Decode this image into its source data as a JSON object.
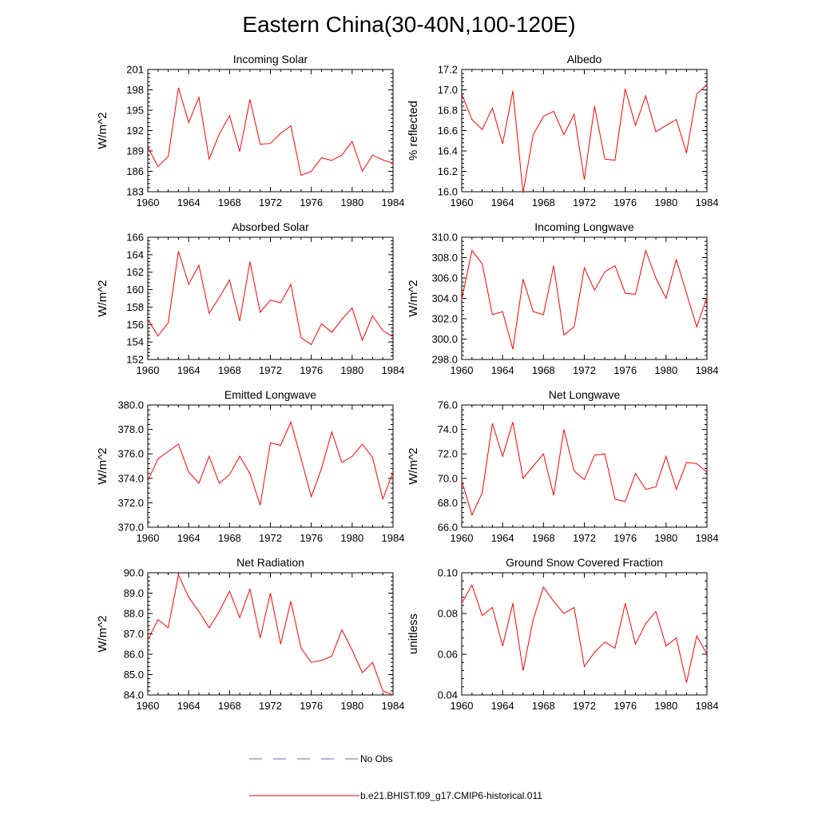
{
  "title": "Eastern China(30-40N,100-120E)",
  "legend": {
    "no_obs": "No Obs",
    "model": "b.e21.BHIST.f09_g17.CMIP6-historical.011",
    "no_obs_color": "#6b6bb8",
    "model_color": "#ff0000"
  },
  "chart_data": [
    {
      "type": "line",
      "title": "Incoming Solar",
      "ylabel": "W/m^2",
      "xlim": [
        1960,
        1984
      ],
      "xticks": [
        1960,
        1964,
        1968,
        1972,
        1976,
        1980,
        1984
      ],
      "ylim": [
        183,
        201
      ],
      "yticks": [
        "183",
        "186",
        "189",
        "192",
        "195",
        "198",
        "201"
      ],
      "x": [
        1960,
        1961,
        1962,
        1963,
        1964,
        1965,
        1966,
        1967,
        1968,
        1969,
        1970,
        1971,
        1972,
        1973,
        1974,
        1975,
        1976,
        1977,
        1978,
        1979,
        1980,
        1981,
        1982,
        1983,
        1984
      ],
      "series": [
        {
          "color": "#ff0000",
          "values": [
            189.6,
            186.7,
            188.2,
            198.3,
            193.2,
            196.9,
            187.8,
            191.5,
            194.2,
            188.9,
            196.6,
            190.0,
            190.1,
            191.6,
            192.7,
            185.4,
            186.0,
            188.0,
            187.6,
            188.4,
            190.4,
            186.0,
            188.4,
            187.7,
            187.2
          ]
        }
      ]
    },
    {
      "type": "line",
      "title": "Albedo",
      "ylabel": "% reflected",
      "xlim": [
        1960,
        1984
      ],
      "xticks": [
        1960,
        1964,
        1968,
        1972,
        1976,
        1980,
        1984
      ],
      "ylim": [
        16.0,
        17.2
      ],
      "yticks": [
        "16.0",
        "16.2",
        "16.4",
        "16.6",
        "16.8",
        "17.0",
        "17.2"
      ],
      "x": [
        1960,
        1961,
        1962,
        1963,
        1964,
        1965,
        1966,
        1967,
        1968,
        1969,
        1970,
        1971,
        1972,
        1973,
        1974,
        1975,
        1976,
        1977,
        1978,
        1979,
        1980,
        1981,
        1982,
        1983,
        1984
      ],
      "series": [
        {
          "color": "#ff0000",
          "values": [
            16.96,
            16.71,
            16.61,
            16.82,
            16.47,
            16.99,
            15.99,
            16.56,
            16.74,
            16.79,
            16.56,
            16.76,
            16.12,
            16.84,
            16.32,
            16.31,
            17.01,
            16.65,
            16.94,
            16.59,
            16.65,
            16.71,
            16.38,
            16.96,
            17.05
          ]
        }
      ]
    },
    {
      "type": "line",
      "title": "Absorbed Solar",
      "ylabel": "W/m^2",
      "xlim": [
        1960,
        1984
      ],
      "xticks": [
        1960,
        1964,
        1968,
        1972,
        1976,
        1980,
        1984
      ],
      "ylim": [
        152,
        166
      ],
      "yticks": [
        "152",
        "154",
        "156",
        "158",
        "160",
        "162",
        "164",
        "166"
      ],
      "x": [
        1960,
        1961,
        1962,
        1963,
        1964,
        1965,
        1966,
        1967,
        1968,
        1969,
        1970,
        1971,
        1972,
        1973,
        1974,
        1975,
        1976,
        1977,
        1978,
        1979,
        1980,
        1981,
        1982,
        1983,
        1984
      ],
      "series": [
        {
          "color": "#ff0000",
          "values": [
            156.6,
            154.7,
            156.2,
            164.4,
            160.6,
            162.8,
            157.3,
            159.1,
            161.1,
            156.4,
            163.2,
            157.4,
            158.8,
            158.5,
            160.6,
            154.5,
            153.7,
            156.1,
            155.1,
            156.6,
            157.9,
            154.2,
            157.0,
            155.3,
            154.6
          ]
        }
      ]
    },
    {
      "type": "line",
      "title": "Incoming Longwave",
      "ylabel": "W/m^2",
      "xlim": [
        1960,
        1984
      ],
      "xticks": [
        1960,
        1964,
        1968,
        1972,
        1976,
        1980,
        1984
      ],
      "ylim": [
        298.0,
        310.0
      ],
      "yticks": [
        "298.0",
        "300.0",
        "302.0",
        "304.0",
        "306.0",
        "308.0",
        "310.0"
      ],
      "x": [
        1960,
        1961,
        1962,
        1963,
        1964,
        1965,
        1966,
        1967,
        1968,
        1969,
        1970,
        1971,
        1972,
        1973,
        1974,
        1975,
        1976,
        1977,
        1978,
        1979,
        1980,
        1981,
        1982,
        1983,
        1984
      ],
      "series": [
        {
          "color": "#ff0000",
          "values": [
            303.9,
            308.7,
            307.4,
            302.4,
            302.7,
            299.0,
            305.9,
            302.7,
            302.4,
            307.2,
            300.4,
            301.2,
            307.0,
            304.8,
            306.6,
            307.2,
            304.5,
            304.4,
            308.7,
            306.0,
            304.0,
            307.8,
            304.5,
            301.2,
            304.1
          ]
        }
      ]
    },
    {
      "type": "line",
      "title": "Emitted Longwave",
      "ylabel": "W/m^2",
      "xlim": [
        1960,
        1984
      ],
      "xticks": [
        1960,
        1964,
        1968,
        1972,
        1976,
        1980,
        1984
      ],
      "ylim": [
        370.0,
        380.0
      ],
      "yticks": [
        "370.0",
        "372.0",
        "374.0",
        "376.0",
        "378.0",
        "380.0"
      ],
      "x": [
        1960,
        1961,
        1962,
        1963,
        1964,
        1965,
        1966,
        1967,
        1968,
        1969,
        1970,
        1971,
        1972,
        1973,
        1974,
        1975,
        1976,
        1977,
        1978,
        1979,
        1980,
        1981,
        1982,
        1983,
        1984
      ],
      "series": [
        {
          "color": "#ff0000",
          "values": [
            373.8,
            375.6,
            376.2,
            376.8,
            374.5,
            373.6,
            375.8,
            373.6,
            374.3,
            375.8,
            374.4,
            371.8,
            376.9,
            376.7,
            378.6,
            375.6,
            372.5,
            374.8,
            377.8,
            375.3,
            375.8,
            376.8,
            375.7,
            372.3,
            374.5
          ]
        }
      ]
    },
    {
      "type": "line",
      "title": "Net Longwave",
      "ylabel": "W/m^2",
      "xlim": [
        1960,
        1984
      ],
      "xticks": [
        1960,
        1964,
        1968,
        1972,
        1976,
        1980,
        1984
      ],
      "ylim": [
        66.0,
        76.0
      ],
      "yticks": [
        "66.0",
        "68.0",
        "70.0",
        "72.0",
        "74.0",
        "76.0"
      ],
      "x": [
        1960,
        1961,
        1962,
        1963,
        1964,
        1965,
        1966,
        1967,
        1968,
        1969,
        1970,
        1971,
        1972,
        1973,
        1974,
        1975,
        1976,
        1977,
        1978,
        1979,
        1980,
        1981,
        1982,
        1983,
        1984
      ],
      "series": [
        {
          "color": "#ff0000",
          "values": [
            69.8,
            67.0,
            68.8,
            74.5,
            71.8,
            74.6,
            70.0,
            71.0,
            72.0,
            68.6,
            74.0,
            70.6,
            69.9,
            71.9,
            72.0,
            68.3,
            68.1,
            70.4,
            69.1,
            69.3,
            71.8,
            69.1,
            71.3,
            71.2,
            70.5
          ]
        }
      ]
    },
    {
      "type": "line",
      "title": "Net Radiation",
      "ylabel": "W/m^2",
      "xlim": [
        1960,
        1984
      ],
      "xticks": [
        1960,
        1964,
        1968,
        1972,
        1976,
        1980,
        1984
      ],
      "ylim": [
        84.0,
        90.0
      ],
      "yticks": [
        "84.0",
        "85.0",
        "86.0",
        "87.0",
        "88.0",
        "89.0",
        "90.0"
      ],
      "x": [
        1960,
        1961,
        1962,
        1963,
        1964,
        1965,
        1966,
        1967,
        1968,
        1969,
        1970,
        1971,
        1972,
        1973,
        1974,
        1975,
        1976,
        1977,
        1978,
        1979,
        1980,
        1981,
        1982,
        1983,
        1984
      ],
      "series": [
        {
          "color": "#ff0000",
          "values": [
            86.7,
            87.7,
            87.3,
            89.9,
            88.8,
            88.1,
            87.3,
            88.1,
            89.1,
            87.8,
            89.2,
            86.8,
            89.0,
            86.5,
            88.6,
            86.3,
            85.6,
            85.7,
            85.9,
            87.2,
            86.2,
            85.1,
            85.6,
            84.2,
            84.0
          ]
        }
      ]
    },
    {
      "type": "line",
      "title": "Ground Snow Covered Fraction",
      "ylabel": "unitless",
      "xlim": [
        1960,
        1984
      ],
      "xticks": [
        1960,
        1964,
        1968,
        1972,
        1976,
        1980,
        1984
      ],
      "ylim": [
        0.04,
        0.1
      ],
      "yticks": [
        "0.04",
        "0.06",
        "0.08",
        "0.10"
      ],
      "x": [
        1960,
        1961,
        1962,
        1963,
        1964,
        1965,
        1966,
        1967,
        1968,
        1969,
        1970,
        1971,
        1972,
        1973,
        1974,
        1975,
        1976,
        1977,
        1978,
        1979,
        1980,
        1981,
        1982,
        1983,
        1984
      ],
      "series": [
        {
          "color": "#ff0000",
          "values": [
            0.085,
            0.094,
            0.079,
            0.083,
            0.064,
            0.085,
            0.052,
            0.077,
            0.093,
            0.086,
            0.08,
            0.083,
            0.054,
            0.061,
            0.066,
            0.063,
            0.085,
            0.065,
            0.075,
            0.081,
            0.064,
            0.068,
            0.046,
            0.069,
            0.06
          ]
        }
      ]
    }
  ]
}
